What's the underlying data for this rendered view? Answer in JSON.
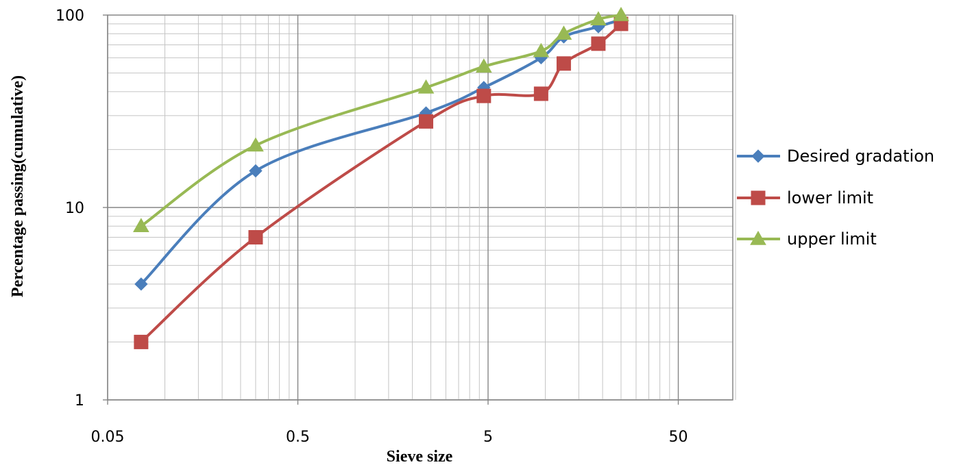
{
  "chart_data": {
    "type": "line",
    "title": "",
    "xlabel": "Sieve size",
    "ylabel": "Percentage  passing(cumulative)",
    "xscale": "log",
    "yscale": "log",
    "xlim": [
      0.05,
      100
    ],
    "ylim": [
      1,
      100
    ],
    "x_ticks": [
      0.05,
      0.5,
      5,
      50
    ],
    "x_tick_labels": [
      "0.05",
      "0.5",
      "5",
      "50"
    ],
    "y_ticks": [
      1,
      10,
      100
    ],
    "y_tick_labels": [
      "1",
      "10",
      "100"
    ],
    "grid": "major and minor",
    "legend": "right",
    "series": [
      {
        "name": "Desired gradation",
        "color": "#4A7EBB",
        "marker": "diamond",
        "x": [
          0.075,
          0.3,
          2.36,
          4.75,
          9.5,
          12.5,
          19,
          25
        ],
        "y": [
          4,
          15.5,
          31,
          42,
          60,
          77,
          87,
          95
        ]
      },
      {
        "name": "lower limit",
        "color": "#BE4B48",
        "marker": "square",
        "x": [
          0.075,
          0.3,
          2.36,
          4.75,
          9.5,
          12.5,
          19,
          25
        ],
        "y": [
          2,
          7,
          28,
          38,
          39,
          56,
          71,
          90
        ]
      },
      {
        "name": "upper limit",
        "color": "#98B954",
        "marker": "triangle",
        "x": [
          0.075,
          0.3,
          2.36,
          4.75,
          9.5,
          12.5,
          19,
          25
        ],
        "y": [
          8,
          21,
          42,
          54,
          65,
          80,
          95,
          100
        ]
      }
    ]
  }
}
